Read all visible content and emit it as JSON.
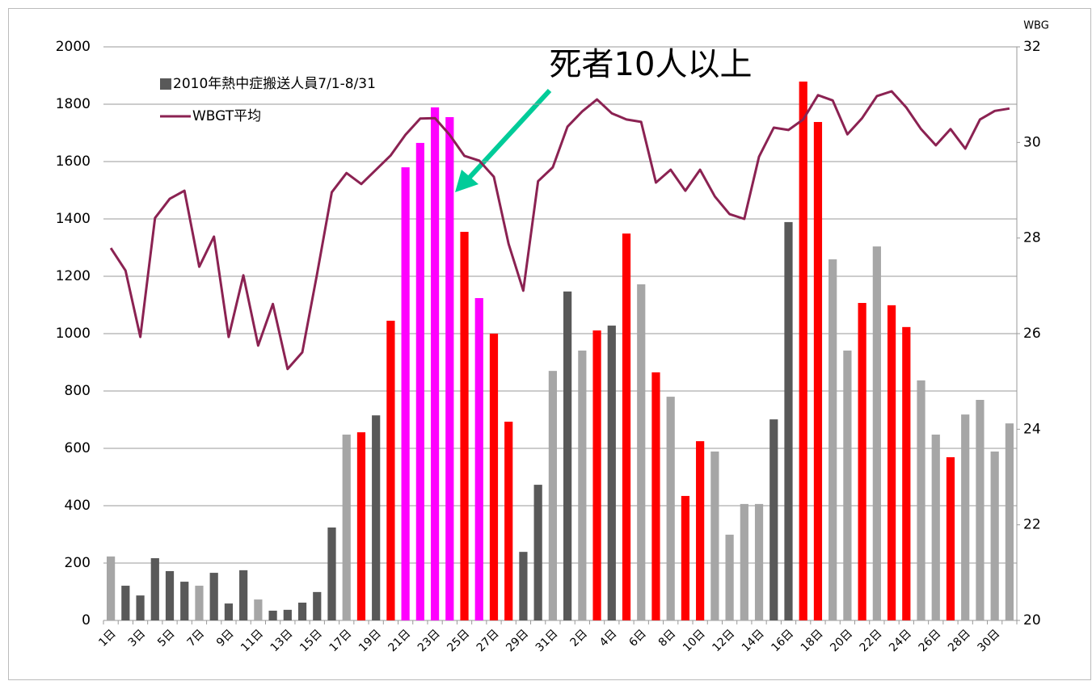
{
  "chart_data": {
    "type": "bar",
    "annotation": "死者10人以上",
    "y2_label": "WBG",
    "categories": [
      "1日",
      null,
      "3日",
      null,
      "5日",
      null,
      "7日",
      null,
      "9日",
      null,
      "11日",
      null,
      "13日",
      null,
      "15日",
      null,
      "17日",
      null,
      "19日",
      null,
      "21日",
      null,
      "23日",
      null,
      "25日",
      null,
      "27日",
      null,
      "29日",
      null,
      "31日",
      null,
      "2日",
      null,
      "4日",
      null,
      "6日",
      null,
      "8日",
      null,
      "10日",
      null,
      "12日",
      null,
      "14日",
      null,
      "16日",
      null,
      "18日",
      null,
      "20日",
      null,
      "22日",
      null,
      "24日",
      null,
      "26日",
      null,
      "28日",
      null,
      "30日",
      null
    ],
    "series": [
      {
        "name": "2010年熱中症搬送人員7/1-8/31",
        "type": "bar",
        "color": "#595959",
        "values": [
          223,
          121,
          87,
          217,
          172,
          135,
          121,
          166,
          59,
          175,
          73,
          34,
          37,
          62,
          99,
          324,
          648,
          656,
          715,
          1045,
          1580,
          1665,
          1789,
          1755,
          1355,
          1124,
          1000,
          693,
          239,
          473,
          870,
          1147,
          941,
          1011,
          1028,
          1349,
          1172,
          865,
          780,
          434,
          625,
          589,
          299,
          406,
          406,
          701,
          1389,
          1879,
          1738,
          1259,
          941,
          1107,
          1304,
          1099,
          1023,
          837,
          648,
          569,
          718,
          769,
          589,
          687
        ],
        "colors": [
          "#a6a6a6",
          "#595959",
          "#595959",
          "#595959",
          "#595959",
          "#595959",
          "#a6a6a6",
          "#595959",
          "#595959",
          "#595959",
          "#a6a6a6",
          "#595959",
          "#595959",
          "#595959",
          "#595959",
          "#595959",
          "#a6a6a6",
          "#ff0000",
          "#595959",
          "#ff0000",
          "#ff00ff",
          "#ff00ff",
          "#ff00ff",
          "#ff00ff",
          "#ff0000",
          "#ff00ff",
          "#ff0000",
          "#ff0000",
          "#595959",
          "#595959",
          "#a6a6a6",
          "#595959",
          "#a6a6a6",
          "#ff0000",
          "#595959",
          "#ff0000",
          "#a6a6a6",
          "#ff0000",
          "#a6a6a6",
          "#ff0000",
          "#ff0000",
          "#a6a6a6",
          "#a6a6a6",
          "#a6a6a6",
          "#a6a6a6",
          "#595959",
          "#595959",
          "#ff0000",
          "#ff0000",
          "#a6a6a6",
          "#a6a6a6",
          "#ff0000",
          "#a6a6a6",
          "#ff0000",
          "#ff0000",
          "#a6a6a6",
          "#a6a6a6",
          "#ff0000",
          "#a6a6a6",
          "#a6a6a6",
          "#a6a6a6",
          "#a6a6a6"
        ]
      },
      {
        "name": "WBGT平均",
        "type": "line",
        "axis": "y2",
        "color": "#8b2252",
        "values": [
          27.79,
          27.32,
          25.93,
          28.42,
          28.82,
          28.99,
          27.4,
          28.03,
          25.93,
          27.22,
          25.75,
          26.62,
          25.26,
          25.61,
          27.25,
          28.96,
          29.36,
          29.13,
          29.43,
          29.73,
          30.16,
          30.5,
          30.51,
          30.16,
          29.72,
          29.62,
          29.28,
          27.88,
          26.9,
          29.19,
          29.48,
          30.33,
          30.65,
          30.9,
          30.61,
          30.48,
          30.43,
          29.16,
          29.43,
          28.99,
          29.43,
          28.87,
          28.5,
          28.4,
          29.7,
          30.31,
          30.26,
          30.48,
          30.99,
          30.88,
          30.17,
          30.51,
          30.97,
          31.07,
          30.73,
          30.28,
          29.94,
          30.28,
          29.87,
          30.48,
          30.66,
          30.71
        ]
      }
    ],
    "ylim": [
      0,
      2000
    ],
    "yticks": [
      0,
      200,
      400,
      600,
      800,
      1000,
      1200,
      1400,
      1600,
      1800,
      2000
    ],
    "y2lim": [
      20,
      32
    ],
    "y2ticks": [
      20,
      22,
      24,
      26,
      28,
      30,
      32
    ],
    "grid": true
  }
}
